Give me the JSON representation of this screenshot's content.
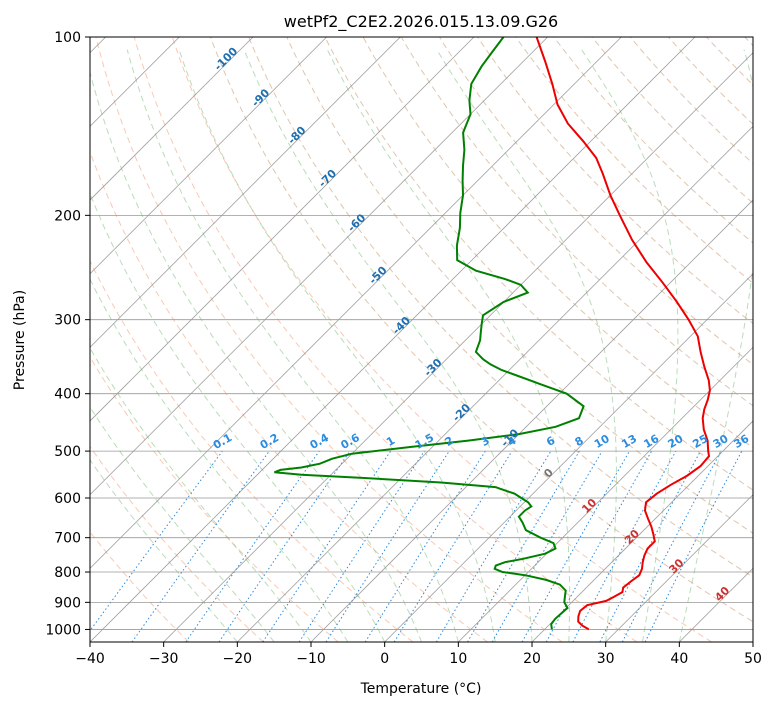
{
  "chart_data": {
    "type": "skewt",
    "title": "wetPf2_C2E2.2026.015.13.09.G26",
    "xlabel": "Temperature (°C)",
    "ylabel": "Pressure (hPa)",
    "xlim": [
      -40,
      50
    ],
    "ylim": [
      1050,
      100
    ],
    "x_ticks": [
      "−40",
      "−30",
      "−20",
      "−10",
      "0",
      "10",
      "20",
      "30",
      "40",
      "50"
    ],
    "x_tick_values": [
      -40,
      -30,
      -20,
      -10,
      0,
      10,
      20,
      30,
      40,
      50
    ],
    "y_ticks": [
      "100",
      "200",
      "300",
      "400",
      "500",
      "600",
      "700",
      "800",
      "900",
      "1000"
    ],
    "y_tick_values": [
      100,
      200,
      300,
      400,
      500,
      600,
      700,
      800,
      900,
      1000
    ],
    "isotherm_labels": [
      "-100",
      "-90",
      "-80",
      "-70",
      "-60",
      "-50",
      "-40",
      "-30",
      "-20",
      "-10"
    ],
    "isotherm_values": [
      -100,
      -90,
      -80,
      -70,
      -60,
      -50,
      -40,
      -30,
      -20,
      -10
    ],
    "mixing_ratio_labels": [
      "0.1",
      "0.2",
      "0.4",
      "0.6",
      "1",
      "1.5",
      "2",
      "3",
      "4",
      "6",
      "8",
      "10",
      "13",
      "16",
      "20",
      "25",
      "30",
      "36"
    ],
    "mixing_ratio_values": [
      0.1,
      0.2,
      0.4,
      0.6,
      1,
      1.5,
      2,
      3,
      4,
      6,
      8,
      10,
      13,
      16,
      20,
      25,
      30,
      36
    ],
    "warm_isotherm_labels": [
      "0",
      "10",
      "20",
      "30",
      "40"
    ],
    "warm_isotherm_values": [
      0,
      10,
      20,
      30,
      40
    ],
    "series": [
      {
        "name": "Temperature",
        "color": "#ee0000",
        "points": [
          [
            1000,
            26
          ],
          [
            985,
            24.6
          ],
          [
            970,
            23.5
          ],
          [
            950,
            22.8
          ],
          [
            930,
            22.3
          ],
          [
            910,
            22.5
          ],
          [
            895,
            24.5
          ],
          [
            880,
            25
          ],
          [
            865,
            25.5
          ],
          [
            850,
            25
          ],
          [
            830,
            25.2
          ],
          [
            810,
            25.5
          ],
          [
            790,
            25
          ],
          [
            770,
            24.2
          ],
          [
            750,
            23.5
          ],
          [
            730,
            23
          ],
          [
            710,
            23
          ],
          [
            690,
            21.8
          ],
          [
            670,
            20.5
          ],
          [
            650,
            19
          ],
          [
            630,
            17.5
          ],
          [
            610,
            16.5
          ],
          [
            590,
            16.8
          ],
          [
            570,
            17.5
          ],
          [
            550,
            18.5
          ],
          [
            530,
            19
          ],
          [
            510,
            18.8
          ],
          [
            500,
            18
          ],
          [
            480,
            16.5
          ],
          [
            460,
            14.5
          ],
          [
            440,
            12.8
          ],
          [
            425,
            11.8
          ],
          [
            410,
            11
          ],
          [
            395,
            10
          ],
          [
            380,
            8.5
          ],
          [
            360,
            6
          ],
          [
            340,
            3.5
          ],
          [
            320,
            1
          ],
          [
            300,
            -2.5
          ],
          [
            280,
            -6.5
          ],
          [
            260,
            -11
          ],
          [
            240,
            -16
          ],
          [
            220,
            -21
          ],
          [
            200,
            -26
          ],
          [
            185,
            -30
          ],
          [
            170,
            -34
          ],
          [
            160,
            -37
          ],
          [
            150,
            -41
          ],
          [
            140,
            -45.5
          ],
          [
            130,
            -49.5
          ],
          [
            120,
            -53
          ],
          [
            110,
            -57
          ],
          [
            100,
            -61.5
          ]
        ]
      },
      {
        "name": "Dewpoint",
        "color": "#008000",
        "points": [
          [
            1000,
            21
          ],
          [
            980,
            20.2
          ],
          [
            960,
            20
          ],
          [
            940,
            20.1
          ],
          [
            920,
            20.2
          ],
          [
            900,
            19
          ],
          [
            880,
            18.3
          ],
          [
            860,
            17.6
          ],
          [
            840,
            16
          ],
          [
            825,
            13.5
          ],
          [
            810,
            10
          ],
          [
            800,
            6.5
          ],
          [
            790,
            5
          ],
          [
            780,
            4.7
          ],
          [
            770,
            5.5
          ],
          [
            760,
            7.5
          ],
          [
            745,
            9.8
          ],
          [
            730,
            10.5
          ],
          [
            715,
            9.5
          ],
          [
            700,
            7
          ],
          [
            680,
            4
          ],
          [
            660,
            2.5
          ],
          [
            645,
            1.2
          ],
          [
            630,
            1.2
          ],
          [
            620,
            1.5
          ],
          [
            610,
            0.5
          ],
          [
            600,
            -1
          ],
          [
            590,
            -2.5
          ],
          [
            575,
            -6
          ],
          [
            565,
            -14
          ],
          [
            555,
            -25
          ],
          [
            548,
            -34
          ],
          [
            543,
            -38
          ],
          [
            538,
            -37.5
          ],
          [
            533,
            -35
          ],
          [
            525,
            -33
          ],
          [
            515,
            -32
          ],
          [
            505,
            -30
          ],
          [
            492,
            -23
          ],
          [
            480,
            -16
          ],
          [
            468,
            -10
          ],
          [
            455,
            -6
          ],
          [
            440,
            -4
          ],
          [
            420,
            -5
          ],
          [
            400,
            -9
          ],
          [
            385,
            -14
          ],
          [
            372,
            -18.5
          ],
          [
            365,
            -21
          ],
          [
            357,
            -23.3
          ],
          [
            350,
            -25
          ],
          [
            340,
            -27
          ],
          [
            325,
            -28
          ],
          [
            315,
            -29
          ],
          [
            305,
            -30
          ],
          [
            295,
            -31
          ],
          [
            280,
            -30
          ],
          [
            270,
            -28
          ],
          [
            262,
            -30
          ],
          [
            256,
            -33
          ],
          [
            248,
            -38
          ],
          [
            238,
            -42
          ],
          [
            225,
            -44
          ],
          [
            210,
            -46
          ],
          [
            198,
            -48
          ],
          [
            185,
            -50
          ],
          [
            175,
            -52
          ],
          [
            165,
            -54
          ],
          [
            155,
            -56
          ],
          [
            145,
            -58.5
          ],
          [
            135,
            -60
          ],
          [
            128,
            -62
          ],
          [
            120,
            -64
          ],
          [
            112,
            -65
          ],
          [
            106,
            -65.5
          ],
          [
            100,
            -66
          ]
        ]
      }
    ]
  }
}
